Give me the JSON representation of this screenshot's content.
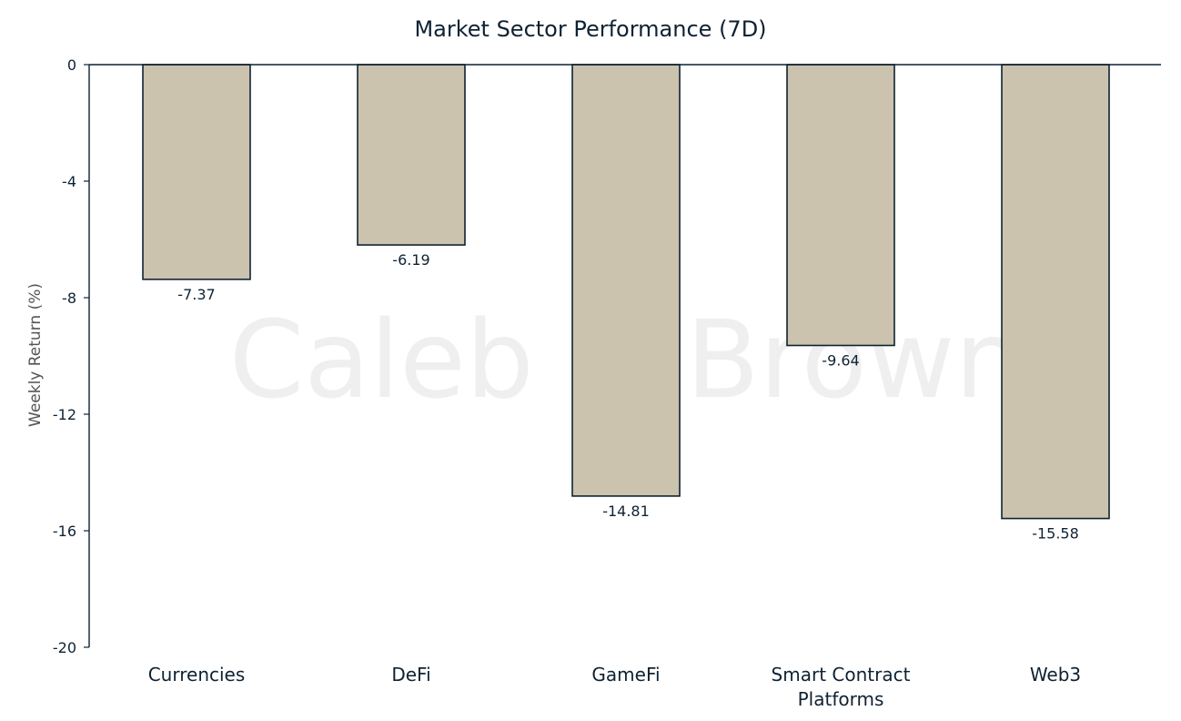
{
  "chart_data": {
    "type": "bar",
    "title": "Market Sector Performance (7D)",
    "xlabel": "",
    "ylabel": "Weekly  Return (%)",
    "categories": [
      "Currencies",
      "DeFi",
      "GameFi",
      "Smart Contract Platforms",
      "Web3"
    ],
    "category_lines": [
      [
        "Currencies"
      ],
      [
        "DeFi"
      ],
      [
        "GameFi"
      ],
      [
        "Smart Contract",
        "Platforms"
      ],
      [
        "Web3"
      ]
    ],
    "values": [
      -7.37,
      -6.19,
      -14.81,
      -9.64,
      -15.58
    ],
    "value_labels": [
      "-7.37",
      "-6.19",
      "-14.81",
      "-9.64",
      "-15.58"
    ],
    "ylim": [
      -20,
      0
    ],
    "yticks": [
      0,
      -4,
      -8,
      -12,
      -16,
      -20
    ],
    "ytick_labels": [
      "0",
      "-4",
      "-8",
      "-12",
      "-16",
      "-20"
    ],
    "grid": false,
    "legend": "none",
    "bar_color": "#cbc3ad",
    "bar_edge_color": "#0f2233",
    "watermark": "Caleb & Brown"
  }
}
